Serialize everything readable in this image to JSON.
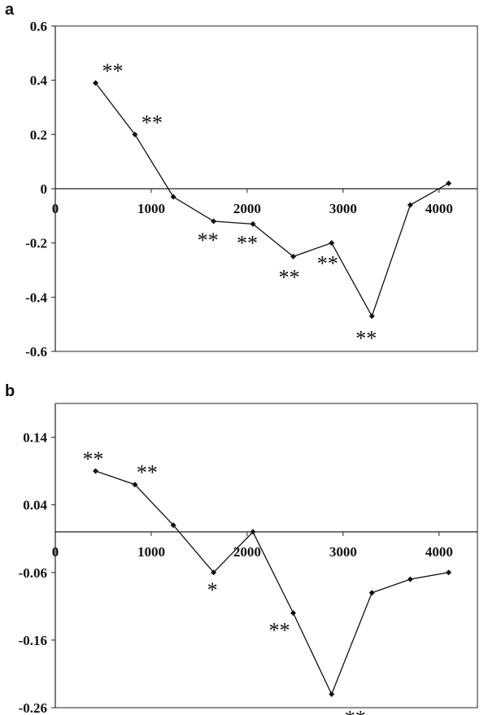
{
  "chart_data": [
    {
      "panel": "a",
      "type": "line",
      "x": [
        420,
        830,
        1230,
        1650,
        2060,
        2480,
        2880,
        3300,
        3700,
        4100
      ],
      "series": [
        {
          "values": [
            0.39,
            0.2,
            -0.03,
            -0.12,
            -0.13,
            -0.25,
            -0.2,
            -0.47,
            -0.06,
            0.02
          ],
          "labels": [
            "**",
            "**",
            "",
            "**",
            "**",
            "**",
            "**",
            "**",
            "",
            ""
          ]
        }
      ],
      "xlim": [
        0,
        4400
      ],
      "ylim": [
        -0.6,
        0.6
      ],
      "xticks": [
        "0",
        "1000",
        "2000",
        "3000",
        "4000"
      ],
      "yticks": [
        "0.6",
        "0.4",
        "0.2",
        "0",
        "-0.2",
        "-0.4",
        "-0.6"
      ],
      "grid": false
    },
    {
      "panel": "b",
      "type": "line",
      "x": [
        420,
        830,
        1230,
        1650,
        2060,
        2480,
        2880,
        3300,
        3700,
        4100
      ],
      "series": [
        {
          "values": [
            0.09,
            0.07,
            0.01,
            -0.06,
            0.0,
            -0.12,
            -0.24,
            -0.09,
            -0.07,
            -0.06
          ],
          "labels": [
            "**",
            "**",
            "",
            "*",
            "",
            "**",
            "**",
            "",
            "",
            ""
          ]
        }
      ],
      "xlim": [
        0,
        4400
      ],
      "ylim": [
        -0.26,
        0.19
      ],
      "xticks": [
        "0",
        "1000",
        "2000",
        "3000",
        "4000"
      ],
      "yticks": [
        "0.14",
        "0.04",
        "-0.06",
        "-0.16",
        "-0.26"
      ],
      "grid": false
    }
  ]
}
